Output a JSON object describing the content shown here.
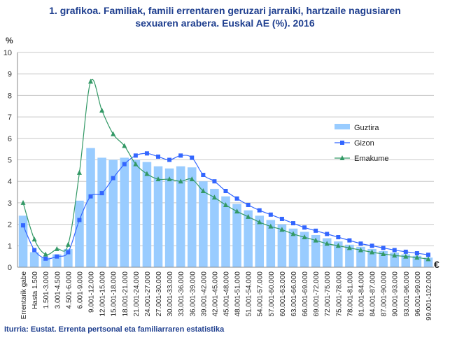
{
  "chart_data": {
    "type": "bar+line",
    "title_lines": [
      "1. grafikoa. Familiak, famili errentaren geruzari jarraiki, hartzaile nagusiaren",
      "sexuaren arabera. Euskal AE (%). 2016"
    ],
    "ylabel": "%",
    "xlabel": "€",
    "ylim": [
      0,
      10
    ],
    "yticks": [
      0,
      1,
      2,
      3,
      4,
      5,
      6,
      7,
      8,
      9,
      10
    ],
    "grid": true,
    "legend_position": "right",
    "categories": [
      "Errentarik gabe",
      "Hasta 1.500",
      "1.501-3.000",
      "3.001-4.500",
      "4.501-6.000",
      "6.001-9.000",
      "9.001-12.000",
      "12.001-15.000",
      "15.001-18.000",
      "18.001-21.000",
      "21.001-24.000",
      "24.001-27.000",
      "27.001-30.000",
      "30.001-33.000",
      "33.001-36.000",
      "36.001-39.000",
      "39.001-42.000",
      "42.001-45.000",
      "45.001-48.000",
      "48.001-51.000",
      "51.001-54.000",
      "54.001-57.000",
      "57.001-60.000",
      "60.001-63.000",
      "63.001-66.000",
      "66.001-69.000",
      "69.001-72.000",
      "72.001-75.000",
      "75.001-78.000",
      "78.001-81.000",
      "81.001-84.000",
      "84.001-87.000",
      "87.001-90.000",
      "90.001-93.000",
      "93.001-96.000",
      "96.001-99.000",
      "99.001-102.000"
    ],
    "series": [
      {
        "name": "Guztira",
        "kind": "bar",
        "color": "#99ccff",
        "values": [
          2.4,
          0.7,
          0.45,
          0.6,
          0.85,
          3.1,
          5.55,
          5.1,
          5.0,
          5.1,
          5.0,
          4.9,
          4.7,
          4.6,
          4.7,
          4.65,
          4.0,
          3.65,
          3.3,
          2.95,
          2.65,
          2.4,
          2.2,
          2.0,
          1.8,
          1.65,
          1.5,
          1.35,
          1.2,
          1.05,
          0.95,
          0.85,
          0.75,
          0.68,
          0.6,
          0.53,
          0.45
        ]
      },
      {
        "name": "Gizon",
        "kind": "line",
        "marker": "square",
        "color": "#3366ff",
        "values": [
          1.95,
          0.8,
          0.4,
          0.5,
          0.7,
          2.2,
          3.3,
          3.45,
          4.15,
          4.8,
          5.2,
          5.3,
          5.15,
          5.0,
          5.2,
          5.1,
          4.3,
          4.0,
          3.55,
          3.2,
          2.9,
          2.65,
          2.45,
          2.25,
          2.05,
          1.85,
          1.7,
          1.55,
          1.4,
          1.25,
          1.1,
          1.0,
          0.9,
          0.8,
          0.72,
          0.65,
          0.58
        ]
      },
      {
        "name": "Emakume",
        "kind": "line",
        "marker": "triangle",
        "color": "#339966",
        "values": [
          3.0,
          1.3,
          0.6,
          0.85,
          1.05,
          4.4,
          8.65,
          7.3,
          6.2,
          5.65,
          4.8,
          4.35,
          4.1,
          4.1,
          4.0,
          4.1,
          3.55,
          3.25,
          2.9,
          2.6,
          2.35,
          2.1,
          1.9,
          1.75,
          1.55,
          1.4,
          1.25,
          1.1,
          1.0,
          0.9,
          0.8,
          0.7,
          0.62,
          0.55,
          0.5,
          0.45,
          0.38
        ]
      }
    ]
  },
  "source_text": "Iturria: Eustat. Errenta pertsonal eta familiarraren estatistika"
}
